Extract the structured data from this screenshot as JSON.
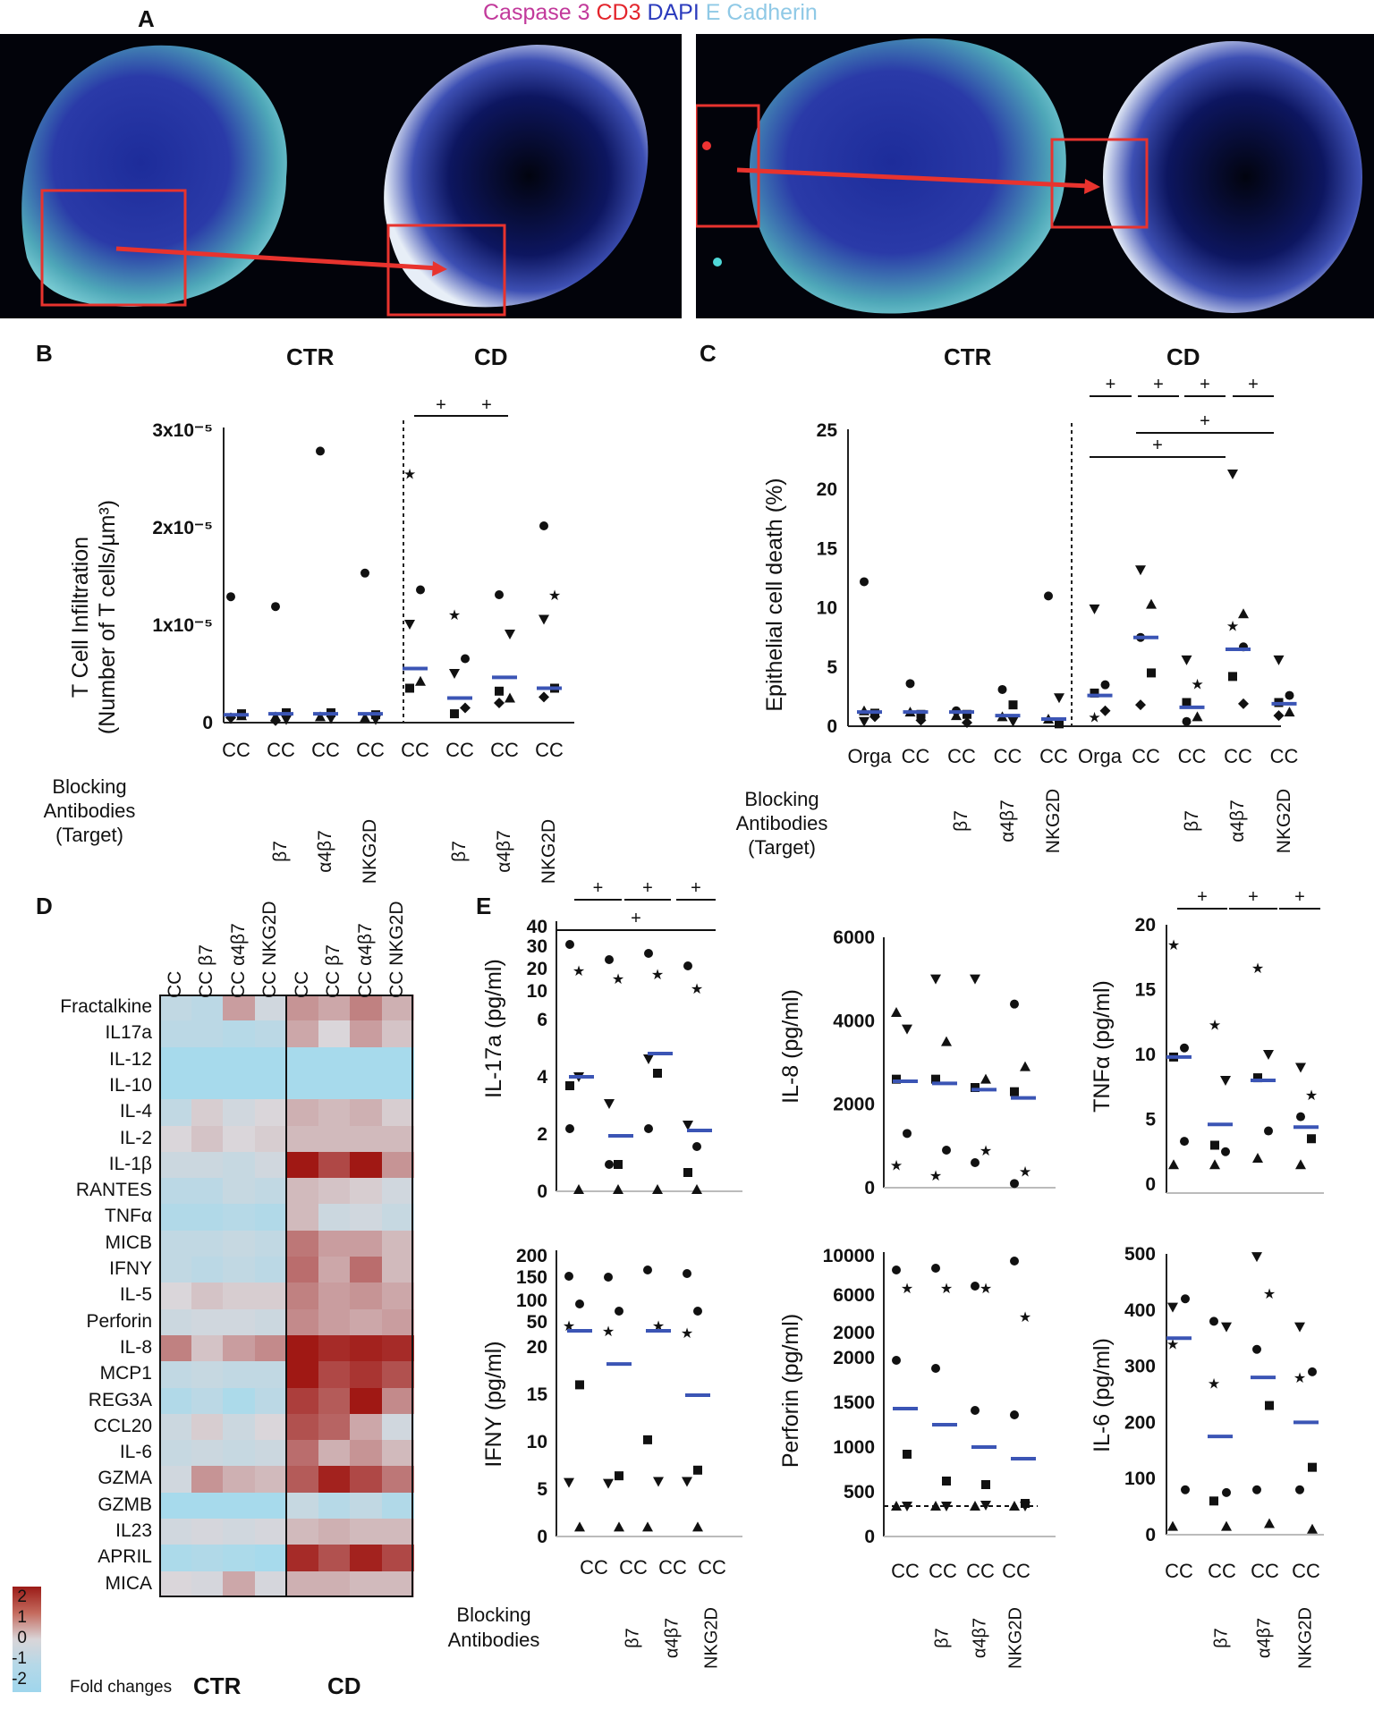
{
  "panelA": {
    "letter": "A",
    "legend": [
      {
        "text": "Caspase 3",
        "color": "#c2399b"
      },
      {
        "text": "CD3",
        "color": "#e3242b"
      },
      {
        "text": "DAPI",
        "color": "#2b3bbd"
      },
      {
        "text": "E Cadherin",
        "color": "#8fc9e6"
      }
    ]
  },
  "panelB": {
    "letter": "B",
    "group_ctr": "CTR",
    "group_cd": "CD",
    "ylabel_1": "T Cell Infiltration",
    "ylabel_2": "(Number of T cells/µm³)",
    "yticks": [
      "3x10⁻⁵",
      "2x10⁻⁵",
      "1x10⁻⁵",
      "0"
    ],
    "xticks": [
      "CC",
      "CC",
      "CC",
      "CC",
      "CC",
      "CC",
      "CC",
      "CC"
    ],
    "targets": [
      "",
      "β7",
      "α4β7",
      "NKG2D",
      "",
      "β7",
      "α4β7",
      "NKG2D"
    ],
    "blocking": [
      "Blocking",
      "Antibodies",
      "(Target)"
    ],
    "sig": [
      "+",
      "+"
    ]
  },
  "panelC": {
    "letter": "C",
    "group_ctr": "CTR",
    "group_cd": "CD",
    "ylabel": "Epithelial cell death (%)",
    "yticks": [
      "25",
      "20",
      "15",
      "10",
      "5",
      "0"
    ],
    "xticks": [
      "Orga",
      "CC",
      "CC",
      "CC",
      "CC",
      "Orga",
      "CC",
      "CC",
      "CC",
      "CC"
    ],
    "targets": [
      "",
      "",
      "β7",
      "α4β7",
      "NKG2D",
      "",
      "",
      "β7",
      "α4β7",
      "NKG2D"
    ],
    "blocking": [
      "Blocking",
      "Antibodies",
      "(Target)"
    ],
    "sig": [
      "+",
      "+",
      "+",
      "+",
      "+",
      "+"
    ]
  },
  "panelD": {
    "letter": "D",
    "columns": [
      "CC",
      "CC β7",
      "CC α4β7",
      "CC NKG2D",
      "CC",
      "CC β7",
      "CC α4β7",
      "CC NKG2D"
    ],
    "rows": [
      "Fractalkine",
      "IL17a",
      "IL-12",
      "IL-10",
      "IL-4",
      "IL-2",
      "IL-1β",
      "RANTES",
      "TNFα",
      "MICB",
      "IFNY",
      "IL-5",
      "Perforin",
      "IL-8",
      "MCP1",
      "REG3A",
      "CCL20",
      "IL-6",
      "GZMA",
      "GZMB",
      "IL23",
      "APRIL",
      "MICA"
    ],
    "values": [
      [
        -0.5,
        -0.6,
        0.6,
        -0.2,
        0.7,
        0.5,
        0.9,
        0.4
      ],
      [
        -0.6,
        -0.6,
        -0.7,
        -0.6,
        0.5,
        0.0,
        0.6,
        0.2
      ],
      [
        -1.0,
        -1.0,
        -1.0,
        -1.0,
        -1.0,
        -1.0,
        -1.0,
        -1.0
      ],
      [
        -1.0,
        -1.0,
        -1.0,
        -1.0,
        -1.0,
        -1.0,
        -1.0,
        -1.0
      ],
      [
        -0.5,
        0.1,
        -0.2,
        0.0,
        0.4,
        0.3,
        0.4,
        0.1
      ],
      [
        0.0,
        0.2,
        0.0,
        0.1,
        0.3,
        0.3,
        0.3,
        0.3
      ],
      [
        -0.3,
        -0.3,
        -0.4,
        -0.2,
        2.0,
        1.5,
        2.0,
        0.7
      ],
      [
        -0.6,
        -0.6,
        -0.4,
        -0.5,
        0.3,
        0.2,
        0.1,
        -0.2
      ],
      [
        -0.8,
        -0.8,
        -0.7,
        -0.8,
        0.3,
        -0.3,
        -0.2,
        -0.4
      ],
      [
        -0.5,
        -0.5,
        -0.4,
        -0.5,
        1.0,
        0.6,
        0.6,
        0.3
      ],
      [
        -0.5,
        -0.6,
        -0.5,
        -0.6,
        1.1,
        0.5,
        1.1,
        0.3
      ],
      [
        0.0,
        0.2,
        0.1,
        0.1,
        0.9,
        0.6,
        0.7,
        0.5
      ],
      [
        -0.3,
        -0.2,
        -0.2,
        -0.3,
        0.8,
        0.6,
        0.5,
        0.6
      ],
      [
        0.9,
        0.2,
        0.6,
        0.8,
        2.0,
        1.8,
        1.9,
        1.8
      ],
      [
        -0.5,
        -0.4,
        -0.5,
        -0.5,
        2.0,
        1.5,
        1.7,
        1.4
      ],
      [
        -0.8,
        -0.6,
        -0.9,
        -0.6,
        1.6,
        1.3,
        2.0,
        0.8
      ],
      [
        -0.3,
        0.1,
        -0.3,
        0.0,
        1.4,
        1.2,
        0.5,
        -0.2
      ],
      [
        -0.4,
        -0.3,
        -0.4,
        -0.3,
        1.1,
        0.4,
        0.7,
        0.3
      ],
      [
        -0.2,
        0.7,
        0.4,
        0.3,
        1.3,
        1.9,
        1.5,
        1.0
      ],
      [
        -1.0,
        -1.0,
        -1.0,
        -1.0,
        -0.4,
        -0.7,
        -0.5,
        -0.8
      ],
      [
        -0.2,
        -0.1,
        -0.2,
        -0.1,
        0.3,
        0.4,
        0.3,
        0.3
      ],
      [
        -0.9,
        -0.8,
        -0.9,
        -1.0,
        1.8,
        1.4,
        1.9,
        1.5
      ],
      [
        0.0,
        -0.1,
        0.5,
        -0.1,
        0.4,
        0.4,
        0.3,
        0.3
      ]
    ],
    "legend_ticks": [
      "2",
      "1",
      "0",
      "-1",
      "-2"
    ],
    "legend_title": "Fold changes",
    "group_ctr": "CTR",
    "group_cd": "CD"
  },
  "panelE": {
    "letter": "E",
    "xticks": [
      "CC",
      "CC",
      "CC",
      "CC"
    ],
    "targets": [
      "",
      "β7",
      "α4β7",
      "NKG2D"
    ],
    "blocking": [
      "Blocking",
      "Antibodies"
    ],
    "il17a": {
      "ylabel": "IL-17a (pg/ml)",
      "yticks_top": [
        "40",
        "30",
        "20",
        "10"
      ],
      "yticks": [
        "6",
        "4",
        "2",
        "0"
      ],
      "sig": [
        "+",
        "+",
        "+",
        "+"
      ]
    },
    "il8": {
      "ylabel": "IL-8 (pg/ml)",
      "yticks": [
        "6000",
        "4000",
        "2000",
        "0"
      ]
    },
    "tnfa": {
      "ylabel": "TNFα (pg/ml)",
      "yticks": [
        "20",
        "15",
        "10",
        "5",
        "0"
      ],
      "sig": [
        "+",
        "+",
        "+"
      ]
    },
    "ifny": {
      "ylabel": "IFNY (pg/ml)",
      "yticks_top": [
        "200",
        "150",
        "100",
        "50"
      ],
      "yticks": [
        "20",
        "15",
        "10",
        "5",
        "0"
      ]
    },
    "perforin": {
      "ylabel": "Perforin (pg/ml)",
      "yticks_top": [
        "10000",
        "6000",
        "2000"
      ],
      "yticks": [
        "2000",
        "1500",
        "1000",
        "500",
        "0"
      ]
    },
    "il6": {
      "ylabel": "IL-6 (pg/ml)",
      "yticks": [
        "500",
        "400",
        "300",
        "200",
        "100",
        "0"
      ]
    }
  },
  "chart_data": [
    {
      "type": "scatter",
      "title": "T Cell Infiltration",
      "ylabel": "Number of T cells/µm³",
      "categories": [
        "CTR CC",
        "CTR CC β7",
        "CTR CC α4β7",
        "CTR CC NKG2D",
        "CD CC",
        "CD CC β7",
        "CD CC α4β7",
        "CD CC NKG2D"
      ],
      "medians": [
        8e-07,
        9e-07,
        9e-07,
        9e-07,
        5.5e-06,
        2.5e-06,
        4.6e-06,
        3.5e-06
      ],
      "ylim": [
        0,
        3e-05
      ]
    },
    {
      "type": "scatter",
      "title": "Epithelial cell death",
      "ylabel": "%",
      "categories": [
        "CTR Orga",
        "CTR CC",
        "CTR CC β7",
        "CTR CC α4β7",
        "CTR CC NKG2D",
        "CD Orga",
        "CD CC",
        "CD CC β7",
        "CD CC α4β7",
        "CD CC NKG2D"
      ],
      "medians": [
        1.2,
        1.2,
        1.2,
        0.9,
        0.6,
        2.6,
        7.5,
        1.6,
        6.5,
        1.9
      ],
      "ylim": [
        0,
        25
      ]
    },
    {
      "type": "scatter",
      "title": "IL-17a",
      "ylabel": "pg/ml",
      "categories": [
        "CC",
        "CC β7",
        "CC α4β7",
        "CC NKG2D"
      ],
      "medians": [
        3.9,
        1.9,
        4.8,
        2.1
      ]
    },
    {
      "type": "scatter",
      "title": "IL-8",
      "ylabel": "pg/ml",
      "categories": [
        "CC",
        "CC β7",
        "CC α4β7",
        "CC NKG2D"
      ],
      "medians": [
        2550,
        2500,
        2350,
        2150
      ],
      "ylim": [
        0,
        6000
      ]
    },
    {
      "type": "scatter",
      "title": "TNFα",
      "ylabel": "pg/ml",
      "categories": [
        "CC",
        "CC β7",
        "CC α4β7",
        "CC NKG2D"
      ],
      "medians": [
        9.8,
        4.6,
        8.0,
        4.4
      ],
      "ylim": [
        0,
        20
      ]
    },
    {
      "type": "scatter",
      "title": "IFNY",
      "ylabel": "pg/ml",
      "categories": [
        "CC",
        "CC β7",
        "CC α4β7",
        "CC NKG2D"
      ],
      "medians": [
        30,
        18.2,
        30,
        14.9
      ]
    },
    {
      "type": "scatter",
      "title": "Perforin",
      "ylabel": "pg/ml",
      "categories": [
        "CC",
        "CC β7",
        "CC α4β7",
        "CC NKG2D"
      ],
      "medians": [
        1430,
        1250,
        1000,
        870
      ]
    },
    {
      "type": "scatter",
      "title": "IL-6",
      "ylabel": "pg/ml",
      "categories": [
        "CC",
        "CC β7",
        "CC α4β7",
        "CC NKG2D"
      ],
      "medians": [
        350,
        175,
        280,
        200
      ],
      "ylim": [
        0,
        500
      ]
    }
  ]
}
